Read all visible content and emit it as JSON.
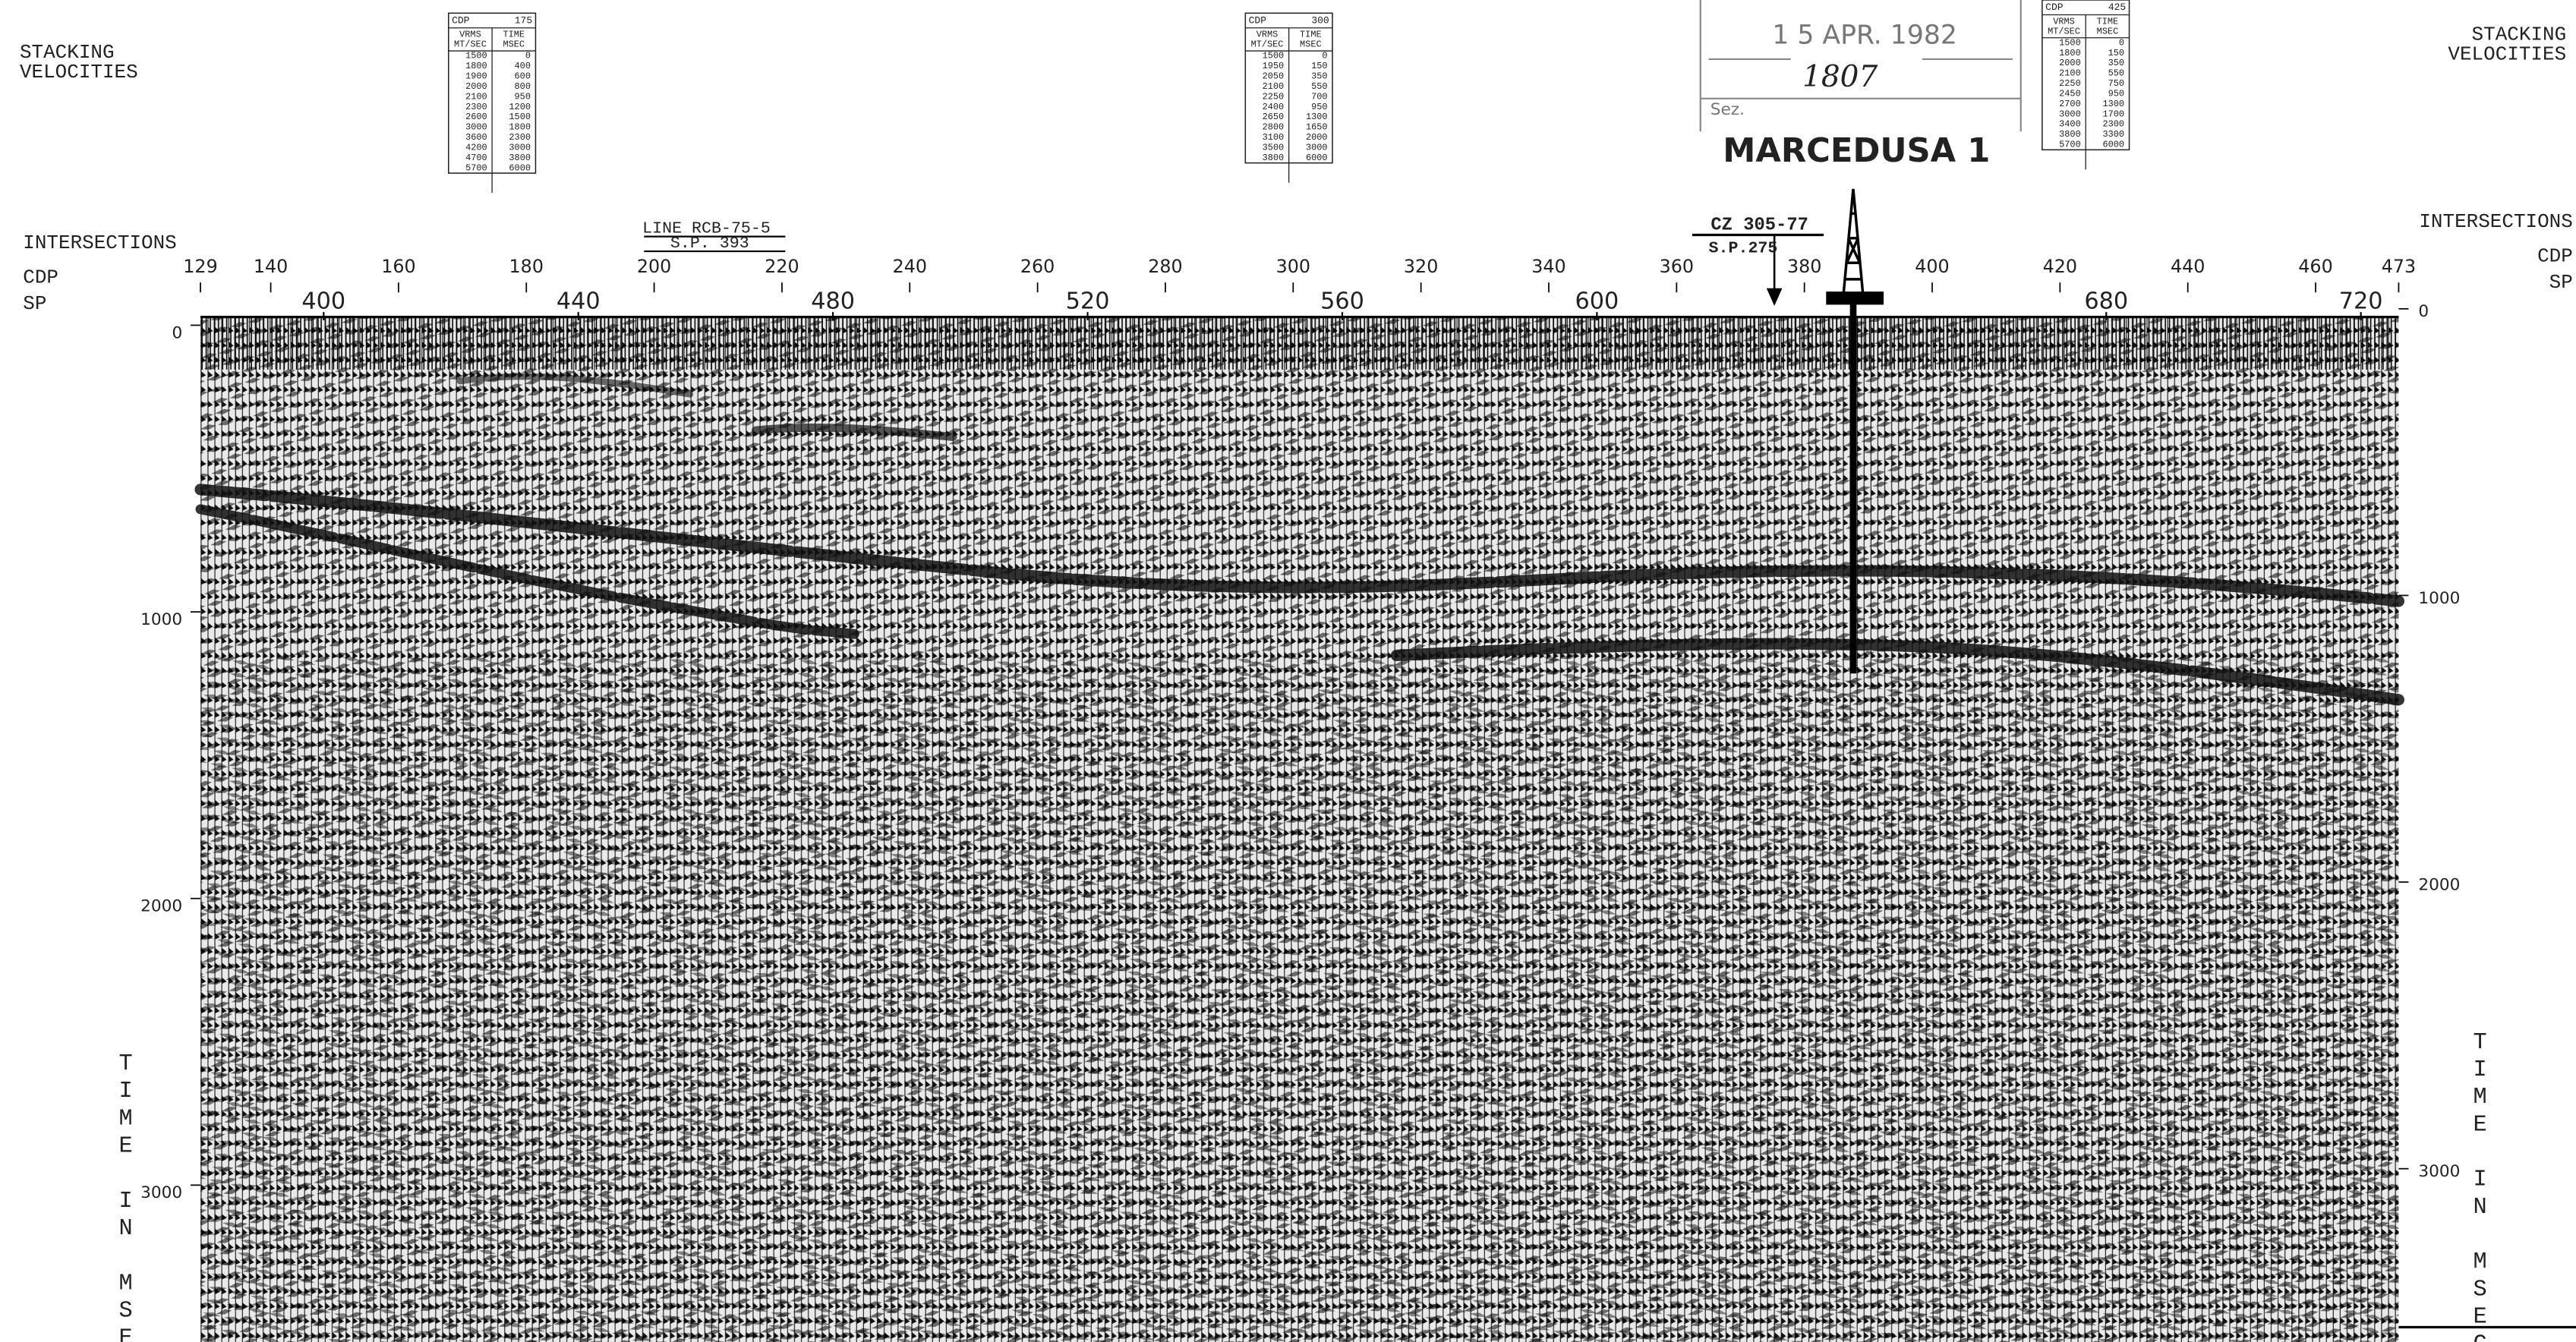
{
  "header": {
    "stacking_velocities": [
      "STACKING",
      "VELOCITIES"
    ]
  },
  "velocity_tables": [
    {
      "cdp_label": "CDP",
      "cdp": 175,
      "columns": [
        [
          "VRMS",
          "MT/SEC"
        ],
        [
          "TIME",
          "MSEC"
        ]
      ],
      "rows": [
        [
          1500,
          0
        ],
        [
          1800,
          400
        ],
        [
          1900,
          600
        ],
        [
          2000,
          800
        ],
        [
          2100,
          950
        ],
        [
          2300,
          1200
        ],
        [
          2600,
          1500
        ],
        [
          3000,
          1800
        ],
        [
          3600,
          2300
        ],
        [
          4200,
          3000
        ],
        [
          4700,
          3800
        ],
        [
          5700,
          6000
        ]
      ]
    },
    {
      "cdp_label": "CDP",
      "cdp": 300,
      "columns": [
        [
          "VRMS",
          "MT/SEC"
        ],
        [
          "TIME",
          "MSEC"
        ]
      ],
      "rows": [
        [
          1500,
          0
        ],
        [
          1950,
          150
        ],
        [
          2050,
          350
        ],
        [
          2100,
          550
        ],
        [
          2250,
          700
        ],
        [
          2400,
          950
        ],
        [
          2650,
          1300
        ],
        [
          2800,
          1650
        ],
        [
          3100,
          2000
        ],
        [
          3500,
          3000
        ],
        [
          3800,
          6000
        ]
      ]
    },
    {
      "cdp_label": "CDP",
      "cdp": 425,
      "columns": [
        [
          "VRMS",
          "MT/SEC"
        ],
        [
          "TIME",
          "MSEC"
        ]
      ],
      "rows": [
        [
          1500,
          0
        ],
        [
          1800,
          150
        ],
        [
          2000,
          350
        ],
        [
          2100,
          550
        ],
        [
          2250,
          750
        ],
        [
          2450,
          950
        ],
        [
          2700,
          1300
        ],
        [
          3000,
          1700
        ],
        [
          3400,
          2300
        ],
        [
          3800,
          3300
        ],
        [
          5700,
          6000
        ]
      ]
    }
  ],
  "stamp": {
    "date": "1 5 APR. 1982",
    "number": "1807",
    "field": "Sez."
  },
  "well": "MARCEDUSA 1",
  "intersections": [
    {
      "line": "LINE RCB-75-5",
      "sp": "S.P. 393"
    },
    {
      "line": "CZ 305-77",
      "sp": "S.P.275"
    }
  ],
  "axes": {
    "intersections_label": "INTERSECTIONS",
    "cdp_label": "CDP",
    "sp_label": "SP",
    "time_label": "TIME IN MSEC",
    "cdp_ticks": [
      129,
      140,
      160,
      180,
      200,
      220,
      240,
      260,
      280,
      300,
      320,
      340,
      360,
      380,
      400,
      420,
      440,
      460,
      473
    ],
    "sp_ticks": [
      400,
      440,
      480,
      520,
      560,
      600,
      680,
      720
    ],
    "time_ticks": [
      0,
      1000,
      2000,
      3000
    ]
  }
}
